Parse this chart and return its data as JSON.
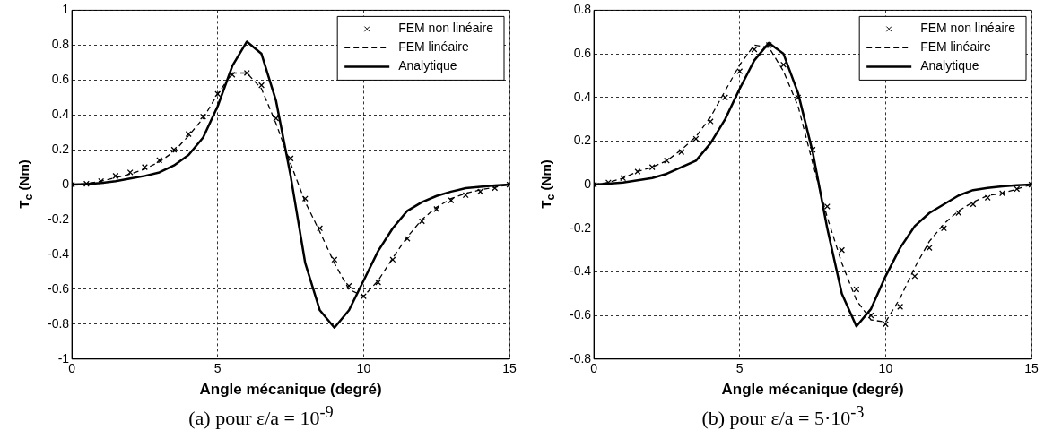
{
  "chart_data": [
    {
      "type": "line",
      "xlabel": "Angle mécanique (degré)",
      "ylabel": "T$_{c}$ (Nm)",
      "annotations": [
        "(a) pour ε/a = 10$^{-9}$"
      ],
      "x": [
        0,
        0.5,
        1,
        1.5,
        2,
        2.5,
        3,
        3.5,
        4,
        4.5,
        5,
        5.5,
        6,
        6.5,
        7,
        7.5,
        8,
        8.5,
        9,
        9.5,
        10,
        10.5,
        11,
        11.5,
        12,
        12.5,
        13,
        13.5,
        14,
        14.5,
        15
      ],
      "series": [
        {
          "name": "FEM non linéaire",
          "type": "scatter",
          "marker": "cross",
          "color": "#000000",
          "values": [
            0,
            0.005,
            0.02,
            0.05,
            0.07,
            0.1,
            0.14,
            0.2,
            0.29,
            0.39,
            0.52,
            0.63,
            0.64,
            0.57,
            0.38,
            0.15,
            -0.08,
            -0.25,
            -0.43,
            -0.58,
            -0.64,
            -0.56,
            -0.43,
            -0.31,
            -0.21,
            -0.14,
            -0.09,
            -0.06,
            -0.04,
            -0.02,
            0
          ]
        },
        {
          "name": "FEM linéaire",
          "line_style": "dashed",
          "color": "#000000",
          "values": [
            0,
            0.005,
            0.02,
            0.04,
            0.06,
            0.09,
            0.13,
            0.19,
            0.28,
            0.38,
            0.52,
            0.64,
            0.64,
            0.55,
            0.35,
            0.12,
            -0.1,
            -0.27,
            -0.45,
            -0.6,
            -0.64,
            -0.55,
            -0.42,
            -0.3,
            -0.2,
            -0.13,
            -0.08,
            -0.05,
            -0.03,
            -0.015,
            0
          ]
        },
        {
          "name": "Analytique",
          "line_style": "solid",
          "color": "#000000",
          "values": [
            0,
            0.003,
            0.01,
            0.02,
            0.035,
            0.05,
            0.07,
            0.11,
            0.17,
            0.27,
            0.45,
            0.68,
            0.82,
            0.75,
            0.48,
            0.05,
            -0.45,
            -0.72,
            -0.82,
            -0.72,
            -0.55,
            -0.38,
            -0.25,
            -0.15,
            -0.1,
            -0.065,
            -0.04,
            -0.02,
            -0.012,
            -0.005,
            0
          ]
        }
      ],
      "xlim": [
        0,
        15
      ],
      "xticks": [
        0,
        5,
        10,
        15
      ],
      "ylim": [
        -1,
        1
      ],
      "yticks": [
        -1,
        -0.8,
        -0.6,
        -0.4,
        -0.2,
        0,
        0.2,
        0.4,
        0.6,
        0.8,
        1
      ],
      "grid": true,
      "legend": "top right"
    },
    {
      "type": "line",
      "xlabel": "Angle mécanique (degré)",
      "ylabel": "T$_{c}$ (Nm)",
      "annotations": [
        "(b) pour ε/a = 5·10$^{-3}$"
      ],
      "x": [
        0,
        0.5,
        1,
        1.5,
        2,
        2.5,
        3,
        3.5,
        4,
        4.5,
        5,
        5.5,
        6,
        6.5,
        7,
        7.5,
        8,
        8.5,
        9,
        9.5,
        10,
        10.5,
        11,
        11.5,
        12,
        12.5,
        13,
        13.5,
        14,
        14.5,
        15
      ],
      "series": [
        {
          "name": "FEM non linéaire",
          "type": "scatter",
          "marker": "cross",
          "color": "#000000",
          "values": [
            0,
            0.01,
            0.03,
            0.06,
            0.08,
            0.11,
            0.15,
            0.21,
            0.29,
            0.4,
            0.52,
            0.62,
            0.64,
            0.55,
            0.4,
            0.16,
            -0.1,
            -0.3,
            -0.48,
            -0.6,
            -0.64,
            -0.56,
            -0.42,
            -0.29,
            -0.2,
            -0.13,
            -0.09,
            -0.06,
            -0.04,
            -0.02,
            0
          ]
        },
        {
          "name": "FEM linéaire",
          "line_style": "dashed",
          "color": "#000000",
          "values": [
            0,
            0.01,
            0.03,
            0.06,
            0.08,
            0.11,
            0.16,
            0.22,
            0.31,
            0.43,
            0.55,
            0.64,
            0.63,
            0.52,
            0.36,
            0.1,
            -0.15,
            -0.36,
            -0.53,
            -0.62,
            -0.63,
            -0.52,
            -0.38,
            -0.26,
            -0.18,
            -0.12,
            -0.08,
            -0.05,
            -0.04,
            -0.02,
            0
          ]
        },
        {
          "name": "Analytique",
          "line_style": "solid",
          "color": "#000000",
          "values": [
            0,
            0.005,
            0.01,
            0.02,
            0.03,
            0.05,
            0.08,
            0.11,
            0.19,
            0.3,
            0.44,
            0.57,
            0.65,
            0.6,
            0.42,
            0.15,
            -0.2,
            -0.5,
            -0.65,
            -0.57,
            -0.42,
            -0.29,
            -0.19,
            -0.13,
            -0.09,
            -0.05,
            -0.025,
            -0.015,
            -0.008,
            -0.003,
            0
          ]
        }
      ],
      "xlim": [
        0,
        15
      ],
      "xticks": [
        0,
        5,
        10,
        15
      ],
      "ylim": [
        -0.8,
        0.8
      ],
      "yticks": [
        -0.8,
        -0.6,
        -0.4,
        -0.2,
        0,
        0.2,
        0.4,
        0.6,
        0.8
      ],
      "grid": true,
      "legend": "top right"
    }
  ]
}
